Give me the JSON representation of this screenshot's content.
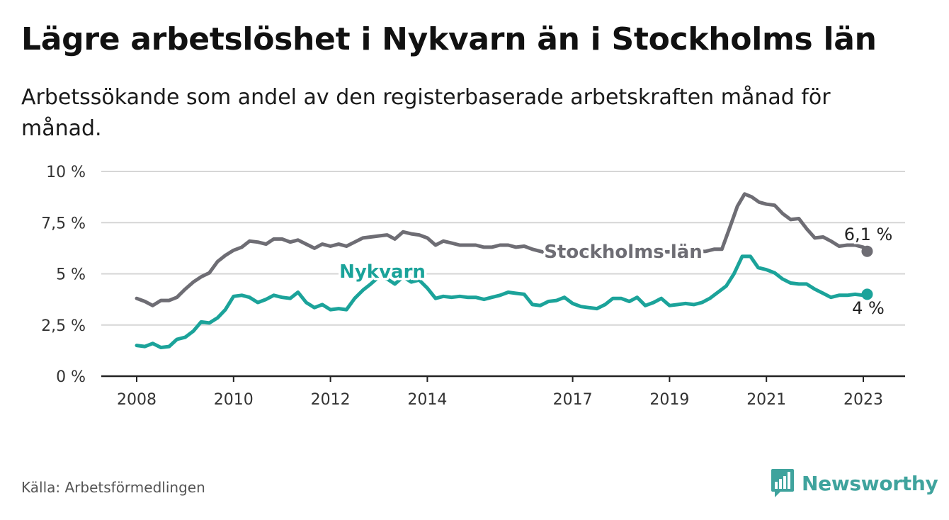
{
  "header": {
    "title": "Lägre arbetslöshet i Nykvarn än i Stockholms län",
    "subtitle": "Arbetssökande som andel av den registerbaserade arbetskraften månad för månad."
  },
  "footer": {
    "source": "Källa: Arbetsförmedlingen",
    "brand": "Newsworthy"
  },
  "colors": {
    "stockholm": "#6e6d74",
    "nykvarn": "#1ba39a",
    "grid": "#d6d6d6",
    "axis": "#222222",
    "brand": "#3fa39d"
  },
  "chart_data": {
    "type": "line",
    "title": "Lägre arbetslöshet i Nykvarn än i Stockholms län",
    "xlabel": "",
    "ylabel": "",
    "xlim": [
      2007.7,
      2024.1
    ],
    "ylim": [
      0,
      10
    ],
    "y_ticks": [
      0,
      2.5,
      5,
      7.5,
      10
    ],
    "y_tick_labels": [
      "0 %",
      "2,5 %",
      "5 %",
      "7,5 %",
      "10 %"
    ],
    "x_ticks": [
      2008,
      2010,
      2012,
      2014,
      2017,
      2019,
      2021,
      2023
    ],
    "x_tick_labels": [
      "2008",
      "2010",
      "2012",
      "2014",
      "2017",
      "2019",
      "2021",
      "2023"
    ],
    "grid": true,
    "series": [
      {
        "name": "Stockholms län",
        "label": "Stockholms län",
        "end_label": "6,1 %",
        "points": [
          [
            2008.0,
            3.8
          ],
          [
            2008.17,
            3.65
          ],
          [
            2008.33,
            3.45
          ],
          [
            2008.5,
            3.7
          ],
          [
            2008.67,
            3.7
          ],
          [
            2008.83,
            3.85
          ],
          [
            2009.0,
            4.25
          ],
          [
            2009.17,
            4.6
          ],
          [
            2009.33,
            4.85
          ],
          [
            2009.5,
            5.05
          ],
          [
            2009.67,
            5.6
          ],
          [
            2009.83,
            5.9
          ],
          [
            2010.0,
            6.15
          ],
          [
            2010.17,
            6.3
          ],
          [
            2010.33,
            6.6
          ],
          [
            2010.5,
            6.55
          ],
          [
            2010.67,
            6.45
          ],
          [
            2010.83,
            6.7
          ],
          [
            2011.0,
            6.7
          ],
          [
            2011.17,
            6.55
          ],
          [
            2011.33,
            6.65
          ],
          [
            2011.5,
            6.45
          ],
          [
            2011.67,
            6.25
          ],
          [
            2011.83,
            6.45
          ],
          [
            2012.0,
            6.35
          ],
          [
            2012.17,
            6.45
          ],
          [
            2012.33,
            6.35
          ],
          [
            2012.5,
            6.55
          ],
          [
            2012.67,
            6.75
          ],
          [
            2012.83,
            6.8
          ],
          [
            2013.0,
            6.85
          ],
          [
            2013.17,
            6.9
          ],
          [
            2013.33,
            6.7
          ],
          [
            2013.5,
            7.05
          ],
          [
            2013.67,
            6.95
          ],
          [
            2013.83,
            6.9
          ],
          [
            2014.0,
            6.75
          ],
          [
            2014.17,
            6.4
          ],
          [
            2014.33,
            6.6
          ],
          [
            2014.5,
            6.5
          ],
          [
            2014.67,
            6.4
          ],
          [
            2014.83,
            6.4
          ],
          [
            2015.0,
            6.4
          ],
          [
            2015.17,
            6.3
          ],
          [
            2015.33,
            6.3
          ],
          [
            2015.5,
            6.4
          ],
          [
            2015.67,
            6.4
          ],
          [
            2015.83,
            6.3
          ],
          [
            2016.0,
            6.35
          ],
          [
            2016.17,
            6.2
          ],
          [
            2016.33,
            6.1
          ],
          [
            2016.5,
            6.0
          ],
          [
            2019.75,
            6.1
          ],
          [
            2019.92,
            6.2
          ],
          [
            2020.08,
            6.2
          ],
          [
            2020.25,
            7.3
          ],
          [
            2020.4,
            8.3
          ],
          [
            2020.55,
            8.9
          ],
          [
            2020.7,
            8.75
          ],
          [
            2020.85,
            8.5
          ],
          [
            2021.0,
            8.4
          ],
          [
            2021.17,
            8.35
          ],
          [
            2021.33,
            7.95
          ],
          [
            2021.5,
            7.65
          ],
          [
            2021.67,
            7.7
          ],
          [
            2021.83,
            7.2
          ],
          [
            2022.0,
            6.75
          ],
          [
            2022.17,
            6.8
          ],
          [
            2022.33,
            6.6
          ],
          [
            2022.5,
            6.35
          ],
          [
            2022.67,
            6.4
          ],
          [
            2022.83,
            6.4
          ],
          [
            2023.0,
            6.3
          ],
          [
            2023.08,
            6.1
          ]
        ]
      },
      {
        "name": "Nykvarn",
        "label": "Nykvarn",
        "end_label": "4 %",
        "points": [
          [
            2008.0,
            1.5
          ],
          [
            2008.17,
            1.45
          ],
          [
            2008.33,
            1.6
          ],
          [
            2008.5,
            1.4
          ],
          [
            2008.67,
            1.45
          ],
          [
            2008.83,
            1.8
          ],
          [
            2009.0,
            1.9
          ],
          [
            2009.17,
            2.2
          ],
          [
            2009.33,
            2.65
          ],
          [
            2009.5,
            2.6
          ],
          [
            2009.67,
            2.85
          ],
          [
            2009.83,
            3.25
          ],
          [
            2010.0,
            3.9
          ],
          [
            2010.17,
            3.95
          ],
          [
            2010.33,
            3.85
          ],
          [
            2010.5,
            3.6
          ],
          [
            2010.67,
            3.75
          ],
          [
            2010.83,
            3.95
          ],
          [
            2011.0,
            3.85
          ],
          [
            2011.17,
            3.8
          ],
          [
            2011.33,
            4.1
          ],
          [
            2011.5,
            3.6
          ],
          [
            2011.67,
            3.35
          ],
          [
            2011.83,
            3.5
          ],
          [
            2012.0,
            3.25
          ],
          [
            2012.17,
            3.3
          ],
          [
            2012.33,
            3.25
          ],
          [
            2012.5,
            3.8
          ],
          [
            2012.67,
            4.2
          ],
          [
            2012.83,
            4.5
          ],
          [
            2013.0,
            4.85
          ],
          [
            2013.17,
            4.75
          ],
          [
            2013.33,
            4.5
          ],
          [
            2013.5,
            4.85
          ],
          [
            2013.67,
            4.6
          ],
          [
            2013.83,
            4.7
          ],
          [
            2014.0,
            4.3
          ],
          [
            2014.17,
            3.8
          ],
          [
            2014.33,
            3.9
          ],
          [
            2014.5,
            3.85
          ],
          [
            2014.67,
            3.9
          ],
          [
            2014.83,
            3.85
          ],
          [
            2015.0,
            3.85
          ],
          [
            2015.17,
            3.75
          ],
          [
            2015.33,
            3.85
          ],
          [
            2015.5,
            3.95
          ],
          [
            2015.67,
            4.1
          ],
          [
            2015.83,
            4.05
          ],
          [
            2016.0,
            4.0
          ],
          [
            2016.17,
            3.5
          ],
          [
            2016.33,
            3.45
          ],
          [
            2016.5,
            3.65
          ],
          [
            2016.67,
            3.7
          ],
          [
            2016.83,
            3.85
          ],
          [
            2017.0,
            3.55
          ],
          [
            2017.17,
            3.4
          ],
          [
            2017.33,
            3.35
          ],
          [
            2017.5,
            3.3
          ],
          [
            2017.67,
            3.5
          ],
          [
            2017.83,
            3.8
          ],
          [
            2018.0,
            3.8
          ],
          [
            2018.17,
            3.65
          ],
          [
            2018.33,
            3.85
          ],
          [
            2018.5,
            3.45
          ],
          [
            2018.67,
            3.6
          ],
          [
            2018.83,
            3.8
          ],
          [
            2019.0,
            3.45
          ],
          [
            2019.17,
            3.5
          ],
          [
            2019.33,
            3.55
          ],
          [
            2019.5,
            3.5
          ],
          [
            2019.67,
            3.6
          ],
          [
            2019.83,
            3.8
          ],
          [
            2020.0,
            4.1
          ],
          [
            2020.17,
            4.4
          ],
          [
            2020.33,
            5.0
          ],
          [
            2020.5,
            5.85
          ],
          [
            2020.67,
            5.85
          ],
          [
            2020.83,
            5.3
          ],
          [
            2021.0,
            5.2
          ],
          [
            2021.17,
            5.05
          ],
          [
            2021.33,
            4.75
          ],
          [
            2021.5,
            4.55
          ],
          [
            2021.67,
            4.5
          ],
          [
            2021.83,
            4.5
          ],
          [
            2022.0,
            4.25
          ],
          [
            2022.17,
            4.05
          ],
          [
            2022.33,
            3.85
          ],
          [
            2022.5,
            3.95
          ],
          [
            2022.67,
            3.95
          ],
          [
            2022.83,
            4.0
          ],
          [
            2023.0,
            3.95
          ],
          [
            2023.08,
            4.0
          ]
        ]
      }
    ]
  }
}
